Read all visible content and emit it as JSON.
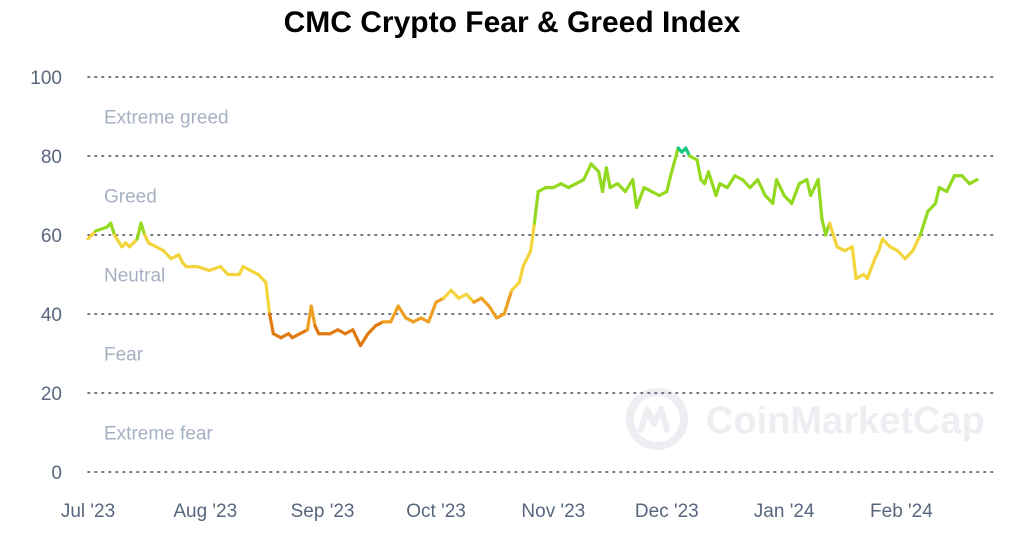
{
  "chart_data": {
    "type": "line",
    "title": "CMC Crypto Fear & Greed Index",
    "xlabel": "",
    "ylabel": "",
    "ylim": [
      0,
      100
    ],
    "y_ticks": [
      "0",
      "20",
      "40",
      "60",
      "80",
      "100"
    ],
    "x_ticks": [
      "Jul '23",
      "Aug '23",
      "Sep '23",
      "Oct '23",
      "Nov '23",
      "Dec '23",
      "Jan '24",
      "Feb '24"
    ],
    "x_tick_dates": [
      "2023-07-01",
      "2023-08-01",
      "2023-09-01",
      "2023-10-01",
      "2023-11-01",
      "2023-12-01",
      "2024-01-01",
      "2024-02-01"
    ],
    "x_range": [
      "2023-07-01",
      "2024-02-26"
    ],
    "grid": true,
    "zones": [
      {
        "label": "Extreme greed",
        "range": [
          80,
          100
        ]
      },
      {
        "label": "Greed",
        "range": [
          60,
          80
        ]
      },
      {
        "label": "Neutral",
        "range": [
          40,
          60
        ]
      },
      {
        "label": "Fear",
        "range": [
          20,
          40
        ]
      },
      {
        "label": "Extreme fear",
        "range": [
          0,
          20
        ]
      }
    ],
    "zone_colors": [
      "#e07a10",
      "#eda023",
      "#f3d43a",
      "#93d91f",
      "#16c784"
    ],
    "watermark": "CoinMarketCap",
    "series": [
      {
        "points": [
          [
            "2023-07-01",
            59
          ],
          [
            "2023-07-02",
            60
          ],
          [
            "2023-07-03",
            61
          ],
          [
            "2023-07-06",
            62
          ],
          [
            "2023-07-07",
            63
          ],
          [
            "2023-07-08",
            60
          ],
          [
            "2023-07-10",
            57
          ],
          [
            "2023-07-11",
            58
          ],
          [
            "2023-07-12",
            57
          ],
          [
            "2023-07-14",
            59
          ],
          [
            "2023-07-15",
            63
          ],
          [
            "2023-07-16",
            60
          ],
          [
            "2023-07-17",
            58
          ],
          [
            "2023-07-19",
            57
          ],
          [
            "2023-07-21",
            56
          ],
          [
            "2023-07-23",
            54
          ],
          [
            "2023-07-25",
            55
          ],
          [
            "2023-07-26",
            53
          ],
          [
            "2023-07-27",
            52
          ],
          [
            "2023-07-30",
            52
          ],
          [
            "2023-08-02",
            51
          ],
          [
            "2023-08-05",
            52
          ],
          [
            "2023-08-07",
            50
          ],
          [
            "2023-08-10",
            50
          ],
          [
            "2023-08-11",
            52
          ],
          [
            "2023-08-13",
            51
          ],
          [
            "2023-08-15",
            50
          ],
          [
            "2023-08-17",
            48
          ],
          [
            "2023-08-18",
            40
          ],
          [
            "2023-08-19",
            35
          ],
          [
            "2023-08-21",
            34
          ],
          [
            "2023-08-23",
            35
          ],
          [
            "2023-08-24",
            34
          ],
          [
            "2023-08-26",
            35
          ],
          [
            "2023-08-28",
            36
          ],
          [
            "2023-08-29",
            42
          ],
          [
            "2023-08-30",
            37
          ],
          [
            "2023-08-31",
            35
          ],
          [
            "2023-09-03",
            35
          ],
          [
            "2023-09-05",
            36
          ],
          [
            "2023-09-07",
            35
          ],
          [
            "2023-09-09",
            36
          ],
          [
            "2023-09-11",
            32
          ],
          [
            "2023-09-13",
            35
          ],
          [
            "2023-09-15",
            37
          ],
          [
            "2023-09-17",
            38
          ],
          [
            "2023-09-19",
            38
          ],
          [
            "2023-09-21",
            42
          ],
          [
            "2023-09-23",
            39
          ],
          [
            "2023-09-25",
            38
          ],
          [
            "2023-09-27",
            39
          ],
          [
            "2023-09-29",
            38
          ],
          [
            "2023-10-01",
            43
          ],
          [
            "2023-10-03",
            44
          ],
          [
            "2023-10-05",
            46
          ],
          [
            "2023-10-07",
            44
          ],
          [
            "2023-10-09",
            45
          ],
          [
            "2023-10-11",
            43
          ],
          [
            "2023-10-13",
            44
          ],
          [
            "2023-10-15",
            42
          ],
          [
            "2023-10-17",
            39
          ],
          [
            "2023-10-19",
            40
          ],
          [
            "2023-10-21",
            46
          ],
          [
            "2023-10-23",
            48
          ],
          [
            "2023-10-24",
            52
          ],
          [
            "2023-10-26",
            56
          ],
          [
            "2023-10-27",
            63
          ],
          [
            "2023-10-28",
            71
          ],
          [
            "2023-10-30",
            72
          ],
          [
            "2023-11-01",
            72
          ],
          [
            "2023-11-03",
            73
          ],
          [
            "2023-11-05",
            72
          ],
          [
            "2023-11-07",
            73
          ],
          [
            "2023-11-09",
            74
          ],
          [
            "2023-11-11",
            78
          ],
          [
            "2023-11-13",
            76
          ],
          [
            "2023-11-14",
            71
          ],
          [
            "2023-11-15",
            77
          ],
          [
            "2023-11-16",
            72
          ],
          [
            "2023-11-18",
            73
          ],
          [
            "2023-11-20",
            71
          ],
          [
            "2023-11-22",
            74
          ],
          [
            "2023-11-23",
            67
          ],
          [
            "2023-11-25",
            72
          ],
          [
            "2023-11-27",
            71
          ],
          [
            "2023-11-29",
            70
          ],
          [
            "2023-12-01",
            71
          ],
          [
            "2023-12-02",
            75
          ],
          [
            "2023-12-04",
            82
          ],
          [
            "2023-12-05",
            81
          ],
          [
            "2023-12-06",
            82
          ],
          [
            "2023-12-07",
            80
          ],
          [
            "2023-12-09",
            79
          ],
          [
            "2023-12-10",
            74
          ],
          [
            "2023-12-11",
            73
          ],
          [
            "2023-12-12",
            76
          ],
          [
            "2023-12-14",
            70
          ],
          [
            "2023-12-15",
            73
          ],
          [
            "2023-12-17",
            72
          ],
          [
            "2023-12-19",
            75
          ],
          [
            "2023-12-21",
            74
          ],
          [
            "2023-12-23",
            72
          ],
          [
            "2023-12-25",
            74
          ],
          [
            "2023-12-27",
            70
          ],
          [
            "2023-12-29",
            68
          ],
          [
            "2023-12-30",
            74
          ],
          [
            "2024-01-01",
            70
          ],
          [
            "2024-01-03",
            68
          ],
          [
            "2024-01-05",
            73
          ],
          [
            "2024-01-07",
            74
          ],
          [
            "2024-01-08",
            70
          ],
          [
            "2024-01-10",
            74
          ],
          [
            "2024-01-11",
            64
          ],
          [
            "2024-01-12",
            60
          ],
          [
            "2024-01-13",
            63
          ],
          [
            "2024-01-15",
            57
          ],
          [
            "2024-01-17",
            56
          ],
          [
            "2024-01-19",
            57
          ],
          [
            "2024-01-20",
            49
          ],
          [
            "2024-01-22",
            50
          ],
          [
            "2024-01-23",
            49
          ],
          [
            "2024-01-25",
            54
          ],
          [
            "2024-01-26",
            56
          ],
          [
            "2024-01-27",
            59
          ],
          [
            "2024-01-29",
            57
          ],
          [
            "2024-01-31",
            56
          ],
          [
            "2024-02-02",
            54
          ],
          [
            "2024-02-04",
            56
          ],
          [
            "2024-02-06",
            60
          ],
          [
            "2024-02-08",
            66
          ],
          [
            "2024-02-10",
            68
          ],
          [
            "2024-02-11",
            72
          ],
          [
            "2024-02-13",
            71
          ],
          [
            "2024-02-15",
            75
          ],
          [
            "2024-02-17",
            75
          ],
          [
            "2024-02-19",
            73
          ],
          [
            "2024-02-21",
            74
          ]
        ]
      }
    ]
  }
}
